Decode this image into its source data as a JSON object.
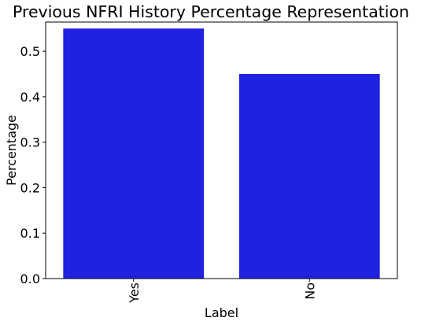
{
  "chart_data": {
    "type": "bar",
    "title": "Previous NFRI History Percentage Representation",
    "xlabel": "Label",
    "ylabel": "Percentage",
    "categories": [
      "Yes",
      "No"
    ],
    "values": [
      0.55,
      0.45
    ],
    "ylim": [
      0,
      0.5643
    ],
    "yticks": [
      "0.0",
      "0.1",
      "0.2",
      "0.3",
      "0.4",
      "0.5"
    ],
    "bar_color": "#2121e0",
    "grid": false,
    "legend": "none"
  }
}
